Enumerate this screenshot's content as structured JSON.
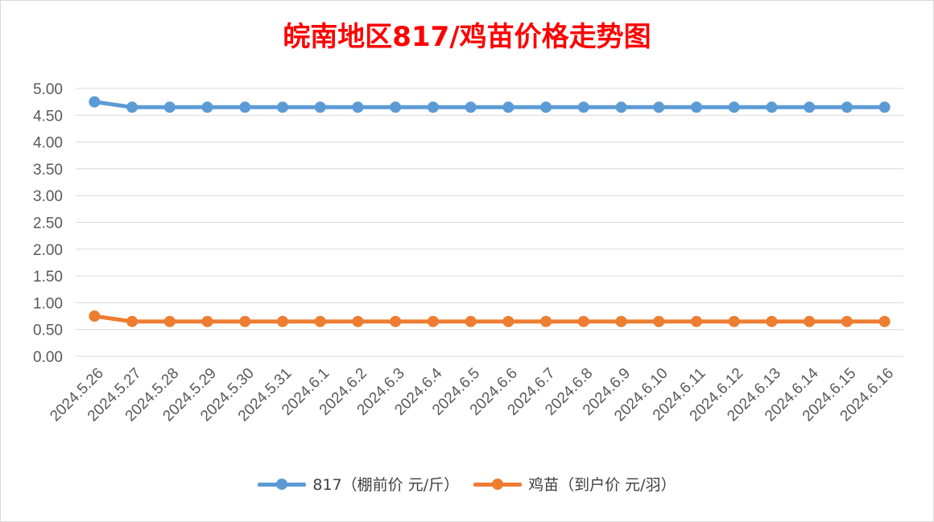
{
  "chart_data": {
    "type": "line",
    "title": "皖南地区817/鸡苗价格走势图",
    "categories": [
      "2024.5.26",
      "2024.5.27",
      "2024.5.28",
      "2024.5.29",
      "2024.5.30",
      "2024.5.31",
      "2024.6.1",
      "2024.6.2",
      "2024.6.3",
      "2024.6.4",
      "2024.6.5",
      "2024.6.6",
      "2024.6.7",
      "2024.6.8",
      "2024.6.9",
      "2024.6.10",
      "2024.6.11",
      "2024.6.12",
      "2024.6.13",
      "2024.6.14",
      "2024.6.15",
      "2024.6.16"
    ],
    "series": [
      {
        "name": "817（棚前价 元/斤）",
        "color": "#5b9bd5",
        "values": [
          4.75,
          4.65,
          4.65,
          4.65,
          4.65,
          4.65,
          4.65,
          4.65,
          4.65,
          4.65,
          4.65,
          4.65,
          4.65,
          4.65,
          4.65,
          4.65,
          4.65,
          4.65,
          4.65,
          4.65,
          4.65,
          4.65
        ]
      },
      {
        "name": "鸡苗（到户价 元/羽）",
        "color": "#ed7d31",
        "values": [
          0.75,
          0.65,
          0.65,
          0.65,
          0.65,
          0.65,
          0.65,
          0.65,
          0.65,
          0.65,
          0.65,
          0.65,
          0.65,
          0.65,
          0.65,
          0.65,
          0.65,
          0.65,
          0.65,
          0.65,
          0.65,
          0.65
        ]
      }
    ],
    "ylim": [
      0,
      5
    ],
    "yticks": [
      "0.00",
      "0.50",
      "1.00",
      "1.50",
      "2.00",
      "2.50",
      "3.00",
      "3.50",
      "4.00",
      "4.50",
      "5.00"
    ],
    "grid": true,
    "legend_position": "bottom",
    "title_color": "#ff0000",
    "gridline_color": "#d9d9d9",
    "tick_label_color": "#595959"
  }
}
